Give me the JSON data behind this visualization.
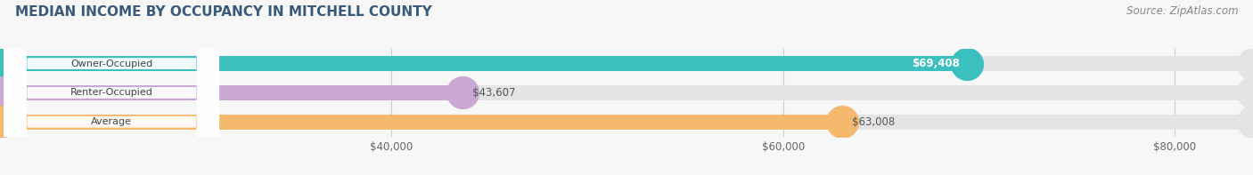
{
  "title": "MEDIAN INCOME BY OCCUPANCY IN MITCHELL COUNTY",
  "source": "Source: ZipAtlas.com",
  "categories": [
    "Owner-Occupied",
    "Renter-Occupied",
    "Average"
  ],
  "values": [
    69408,
    43607,
    63008
  ],
  "bar_colors": [
    "#3bbfbf",
    "#c9a8d4",
    "#f5b96e"
  ],
  "bar_bg_color": "#e4e4e4",
  "value_labels": [
    "$69,408",
    "$43,607",
    "$63,008"
  ],
  "label_inside": [
    true,
    false,
    false
  ],
  "xlim_min": 20000,
  "xlim_max": 84000,
  "xticks": [
    40000,
    60000,
    80000
  ],
  "xtick_labels": [
    "$40,000",
    "$60,000",
    "$80,000"
  ],
  "title_color": "#3a5a7a",
  "title_fontsize": 11,
  "source_color": "#888888",
  "source_fontsize": 8.5,
  "bar_height": 0.52,
  "background_color": "#f7f7f7",
  "pill_color": "#ffffff",
  "pill_text_color": "#444444"
}
